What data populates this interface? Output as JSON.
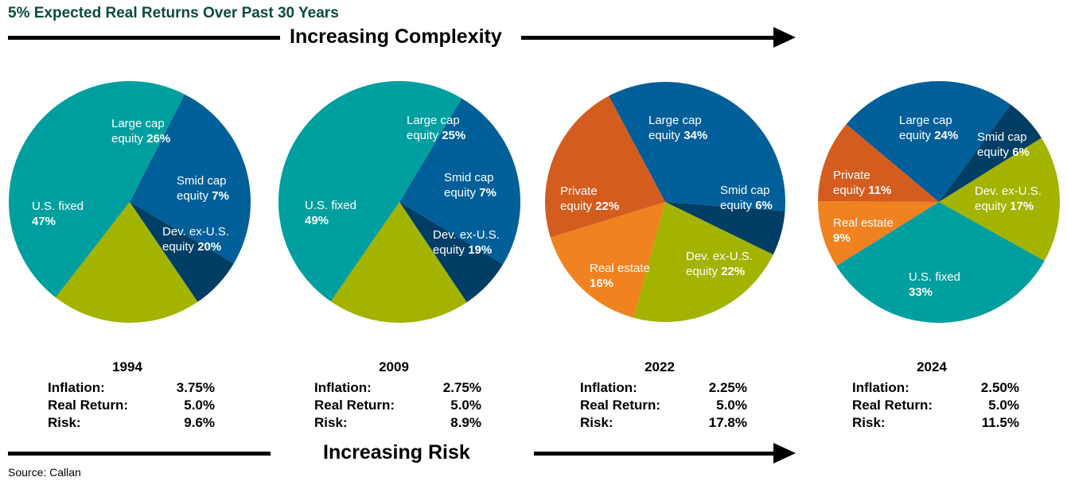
{
  "title": "5% Expected Real Returns Over Past 30 Years",
  "top_banner": "Increasing Complexity",
  "bottom_banner": "Increasing Risk",
  "source": "Source: Callan",
  "stat_labels": {
    "inflation": "Inflation:",
    "real_return": "Real Return:",
    "risk": "Risk:"
  },
  "colors": {
    "Large cap equity": "#005f99",
    "Smid cap equity": "#003e66",
    "Dev. ex-U.S. equity": "#a2b300",
    "U.S. fixed": "#009f9f",
    "Private equity": "#d35c1e",
    "Real estate": "#f08220"
  },
  "chart_data": [
    {
      "type": "pie",
      "year": "1994",
      "slices": [
        {
          "label": "Large cap\nequity",
          "value": 26,
          "display": "26%"
        },
        {
          "label": "Smid cap\nequity",
          "value": 7,
          "display": "7%"
        },
        {
          "label": "Dev. ex-U.S.\nequity",
          "value": 20,
          "display": "20%"
        },
        {
          "label": "U.S. fixed",
          "value": 47,
          "display": "47%"
        }
      ],
      "stats": {
        "inflation": "3.75%",
        "real_return": "5.0%",
        "risk": "9.6%"
      }
    },
    {
      "type": "pie",
      "year": "2009",
      "slices": [
        {
          "label": "Large cap\nequity",
          "value": 25,
          "display": "25%"
        },
        {
          "label": "Smid cap\nequity",
          "value": 7,
          "display": "7%"
        },
        {
          "label": "Dev. ex-U.S.\nequity",
          "value": 19,
          "display": "19%"
        },
        {
          "label": "U.S. fixed",
          "value": 49,
          "display": "49%"
        }
      ],
      "stats": {
        "inflation": "2.75%",
        "real_return": "5.0%",
        "risk": "8.9%"
      }
    },
    {
      "type": "pie",
      "year": "2022",
      "slices": [
        {
          "label": "Large cap\nequity",
          "value": 34,
          "display": "34%"
        },
        {
          "label": "Smid cap\nequity",
          "value": 6,
          "display": "6%"
        },
        {
          "label": "Dev. ex-U.S.\nequity",
          "value": 22,
          "display": "22%"
        },
        {
          "label": "Real estate",
          "value": 16,
          "display": "16%"
        },
        {
          "label": "Private\nequity",
          "value": 22,
          "display": "22%"
        }
      ],
      "stats": {
        "inflation": "2.25%",
        "real_return": "5.0%",
        "risk": "17.8%"
      }
    },
    {
      "type": "pie",
      "year": "2024",
      "slices": [
        {
          "label": "Large cap\nequity",
          "value": 24,
          "display": "24%"
        },
        {
          "label": "Smid cap\nequity",
          "value": 6,
          "display": "6%"
        },
        {
          "label": "Dev. ex-U.S.\nequity",
          "value": 17,
          "display": "17%"
        },
        {
          "label": "U.S. fixed",
          "value": 33,
          "display": "33%"
        },
        {
          "label": "Real estate",
          "value": 9,
          "display": "9%"
        },
        {
          "label": "Private\nequity",
          "value": 11,
          "display": "11%"
        }
      ],
      "stats": {
        "inflation": "2.50%",
        "real_return": "5.0%",
        "risk": "11.5%"
      }
    }
  ]
}
